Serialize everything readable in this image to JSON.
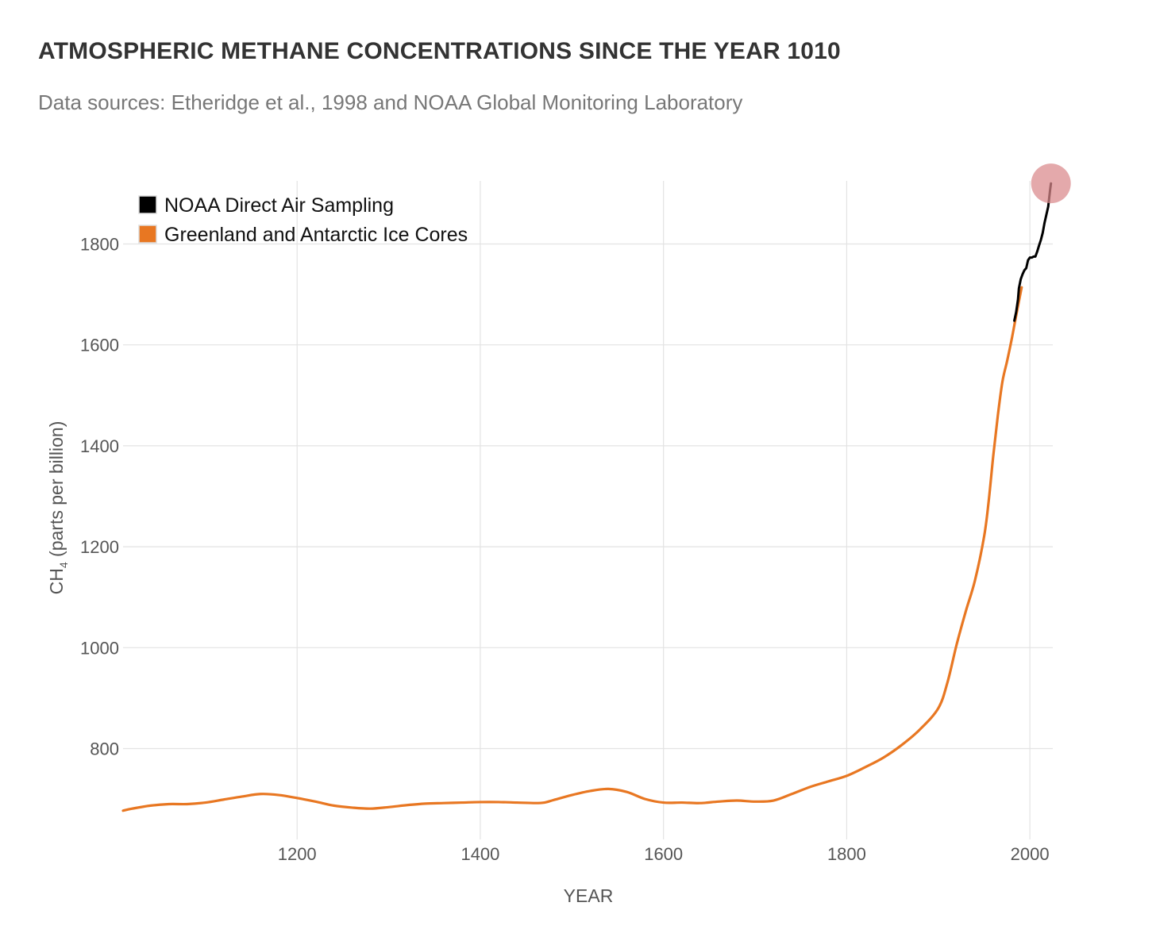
{
  "chart_data": {
    "type": "line",
    "title": "ATMOSPHERIC METHANE CONCENTRATIONS SINCE THE YEAR 1010",
    "subtitle": "Data sources: Etheridge et al., 1998 and NOAA Global Monitoring Laboratory",
    "xlabel": "YEAR",
    "ylabel_main": "CH",
    "ylabel_sub": "4",
    "ylabel_rest": " (parts per billion)",
    "xlim": [
      1010,
      2025
    ],
    "ylim": [
      620,
      1925
    ],
    "xticks": [
      1200,
      1400,
      1600,
      1800,
      2000
    ],
    "yticks": [
      800,
      1000,
      1200,
      1400,
      1600,
      1800
    ],
    "legend_position": "top-left",
    "series": [
      {
        "name": "NOAA Direct Air Sampling",
        "color": "#000000",
        "x": [
          1983,
          1985,
          1987,
          1988,
          1990,
          1992,
          1994,
          1996,
          1998,
          2000,
          2002,
          2004,
          2006,
          2008,
          2010,
          2012,
          2014,
          2016,
          2018,
          2020,
          2022,
          2023
        ],
        "y": [
          1648,
          1665,
          1690,
          1712,
          1730,
          1740,
          1748,
          1752,
          1768,
          1773,
          1773,
          1775,
          1775,
          1785,
          1797,
          1808,
          1822,
          1842,
          1858,
          1874,
          1906,
          1920
        ]
      },
      {
        "name": "Greenland and Antarctic Ice Cores",
        "color": "#E87722",
        "x": [
          1010,
          1020,
          1040,
          1060,
          1080,
          1100,
          1120,
          1140,
          1160,
          1180,
          1200,
          1220,
          1240,
          1260,
          1280,
          1300,
          1320,
          1340,
          1360,
          1380,
          1400,
          1420,
          1440,
          1460,
          1470,
          1480,
          1500,
          1520,
          1540,
          1560,
          1580,
          1600,
          1620,
          1640,
          1660,
          1680,
          1700,
          1720,
          1740,
          1760,
          1780,
          1800,
          1820,
          1840,
          1860,
          1880,
          1900,
          1910,
          1920,
          1930,
          1940,
          1950,
          1955,
          1960,
          1965,
          1970,
          1975,
          1980,
          1985,
          1991
        ],
        "y": [
          677,
          681,
          687,
          690,
          690,
          693,
          699,
          705,
          710,
          708,
          702,
          695,
          687,
          683,
          681,
          684,
          688,
          691,
          692,
          693,
          694,
          694,
          693,
          692,
          693,
          698,
          708,
          716,
          720,
          714,
          700,
          693,
          693,
          692,
          695,
          697,
          695,
          697,
          710,
          724,
          735,
          746,
          763,
          782,
          807,
          838,
          880,
          931,
          1006,
          1072,
          1133,
          1220,
          1290,
          1380,
          1460,
          1527,
          1567,
          1610,
          1658,
          1714
        ]
      }
    ],
    "annotations": [
      {
        "type": "highlight-circle",
        "x": 2023,
        "y": 1920,
        "color": "#D9888A"
      }
    ]
  }
}
